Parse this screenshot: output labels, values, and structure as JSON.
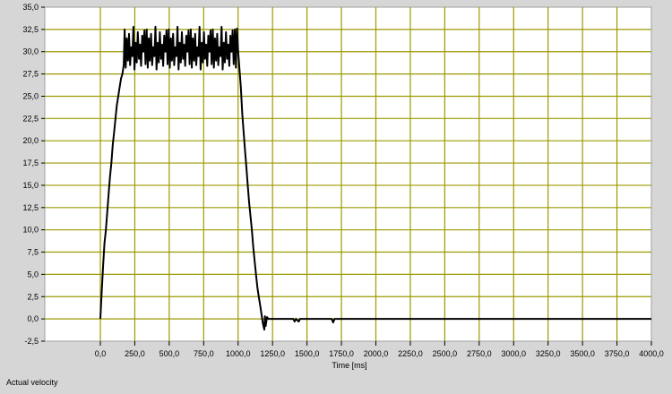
{
  "chart_data": {
    "type": "line",
    "title": "",
    "xlabel": "Time [ms]",
    "ylabel": "",
    "xlim": [
      -400,
      4000
    ],
    "ylim": [
      -2.5,
      35
    ],
    "xticks": [
      "0,0",
      "250,0",
      "500,0",
      "750,0",
      "1000,0",
      "1250,0",
      "1500,0",
      "1750,0",
      "2000,0",
      "2250,0",
      "2500,0",
      "2750,0",
      "3000,0",
      "3250,0",
      "3500,0",
      "3750,0",
      "4000,0"
    ],
    "xtick_values": [
      0,
      250,
      500,
      750,
      1000,
      1250,
      1500,
      1750,
      2000,
      2250,
      2500,
      2750,
      3000,
      3250,
      3500,
      3750,
      4000
    ],
    "yticks": [
      "-2,5",
      "0,0",
      "2,5",
      "5,0",
      "7,5",
      "10,0",
      "12,5",
      "15,0",
      "17,5",
      "20,0",
      "22,5",
      "25,0",
      "27,5",
      "30,0",
      "32,5",
      "35,0"
    ],
    "ytick_values": [
      -2.5,
      0,
      2.5,
      5,
      7.5,
      10,
      12.5,
      15,
      17.5,
      20,
      22.5,
      25,
      27.5,
      30,
      32.5,
      35
    ],
    "grid": true,
    "legend": "none",
    "colors": {
      "background": "#d6d6d6",
      "plot": "#ffffff",
      "grid": "#9c9a00",
      "line": "#000000"
    },
    "series": [
      {
        "name": "Actual velocity",
        "points": [
          [
            0,
            0
          ],
          [
            10,
            3
          ],
          [
            20,
            6
          ],
          [
            30,
            8.5
          ],
          [
            40,
            10
          ],
          [
            50,
            12
          ],
          [
            60,
            14
          ],
          [
            70,
            16
          ],
          [
            80,
            17.5
          ],
          [
            90,
            19.5
          ],
          [
            100,
            21
          ],
          [
            110,
            22.5
          ],
          [
            120,
            24
          ],
          [
            130,
            25
          ],
          [
            140,
            26
          ],
          [
            150,
            27
          ],
          [
            160,
            27.5
          ],
          [
            170,
            28.5
          ],
          [
            176,
            32.5
          ],
          [
            184,
            28.2
          ],
          [
            192,
            31.5
          ],
          [
            200,
            29
          ],
          [
            208,
            32
          ],
          [
            216,
            28.5
          ],
          [
            224,
            30.5
          ],
          [
            232,
            29.5
          ],
          [
            240,
            32.8
          ],
          [
            248,
            28
          ],
          [
            256,
            31
          ],
          [
            264,
            28.8
          ],
          [
            272,
            32.2
          ],
          [
            280,
            29.2
          ],
          [
            288,
            30.8
          ],
          [
            296,
            28.4
          ],
          [
            304,
            31.8
          ],
          [
            312,
            30
          ],
          [
            320,
            32.4
          ],
          [
            328,
            28.6
          ],
          [
            336,
            32.5
          ],
          [
            344,
            28.2
          ],
          [
            352,
            31.5
          ],
          [
            360,
            29
          ],
          [
            368,
            32
          ],
          [
            376,
            28.5
          ],
          [
            384,
            30.5
          ],
          [
            392,
            29.5
          ],
          [
            400,
            32.8
          ],
          [
            408,
            28
          ],
          [
            416,
            31
          ],
          [
            424,
            28.8
          ],
          [
            432,
            32.2
          ],
          [
            440,
            29.2
          ],
          [
            448,
            30.8
          ],
          [
            456,
            28.4
          ],
          [
            464,
            31.8
          ],
          [
            472,
            30
          ],
          [
            480,
            32.4
          ],
          [
            488,
            28.6
          ],
          [
            496,
            32.5
          ],
          [
            504,
            28.2
          ],
          [
            512,
            31.5
          ],
          [
            520,
            29
          ],
          [
            528,
            32
          ],
          [
            536,
            28.5
          ],
          [
            544,
            30.5
          ],
          [
            552,
            29.5
          ],
          [
            560,
            32.8
          ],
          [
            568,
            28
          ],
          [
            576,
            31
          ],
          [
            584,
            28.8
          ],
          [
            592,
            32.2
          ],
          [
            600,
            29.2
          ],
          [
            608,
            30.8
          ],
          [
            616,
            28.4
          ],
          [
            624,
            31.8
          ],
          [
            632,
            30
          ],
          [
            640,
            32.4
          ],
          [
            648,
            28.6
          ],
          [
            656,
            32.5
          ],
          [
            664,
            28.2
          ],
          [
            672,
            31.5
          ],
          [
            680,
            29
          ],
          [
            688,
            32
          ],
          [
            696,
            28.5
          ],
          [
            704,
            30.5
          ],
          [
            712,
            29.5
          ],
          [
            720,
            32.8
          ],
          [
            728,
            28
          ],
          [
            736,
            31
          ],
          [
            744,
            28.8
          ],
          [
            752,
            32.2
          ],
          [
            760,
            29.2
          ],
          [
            768,
            30.8
          ],
          [
            776,
            28.4
          ],
          [
            784,
            31.8
          ],
          [
            792,
            30
          ],
          [
            800,
            32.4
          ],
          [
            808,
            28.6
          ],
          [
            816,
            32.5
          ],
          [
            824,
            28.2
          ],
          [
            832,
            31.5
          ],
          [
            840,
            29
          ],
          [
            848,
            32
          ],
          [
            856,
            28.5
          ],
          [
            864,
            30.5
          ],
          [
            872,
            29.5
          ],
          [
            880,
            32.8
          ],
          [
            888,
            28
          ],
          [
            896,
            31
          ],
          [
            904,
            28.8
          ],
          [
            912,
            32.2
          ],
          [
            920,
            29.2
          ],
          [
            928,
            30.8
          ],
          [
            936,
            28.4
          ],
          [
            944,
            31.8
          ],
          [
            952,
            30
          ],
          [
            960,
            32.4
          ],
          [
            968,
            28.6
          ],
          [
            976,
            32.5
          ],
          [
            984,
            28.2
          ],
          [
            992,
            32.6
          ],
          [
            1000,
            30
          ],
          [
            1010,
            28
          ],
          [
            1020,
            26
          ],
          [
            1030,
            23
          ],
          [
            1040,
            21
          ],
          [
            1050,
            19
          ],
          [
            1060,
            17
          ],
          [
            1070,
            15
          ],
          [
            1080,
            13
          ],
          [
            1090,
            11.5
          ],
          [
            1100,
            10
          ],
          [
            1110,
            8
          ],
          [
            1120,
            6.5
          ],
          [
            1130,
            5
          ],
          [
            1140,
            3.5
          ],
          [
            1150,
            2.5
          ],
          [
            1160,
            1.5
          ],
          [
            1170,
            0.5
          ],
          [
            1180,
            -0.5
          ],
          [
            1190,
            -1.2
          ],
          [
            1195,
            0.3
          ],
          [
            1200,
            -0.8
          ],
          [
            1210,
            0.2
          ],
          [
            1220,
            0
          ],
          [
            1400,
            0
          ],
          [
            1410,
            -0.3
          ],
          [
            1420,
            0
          ],
          [
            1440,
            -0.3
          ],
          [
            1450,
            0
          ],
          [
            1680,
            0
          ],
          [
            1690,
            -0.4
          ],
          [
            1700,
            0
          ],
          [
            4000,
            0
          ]
        ]
      }
    ]
  },
  "caption": "Actual velocity"
}
